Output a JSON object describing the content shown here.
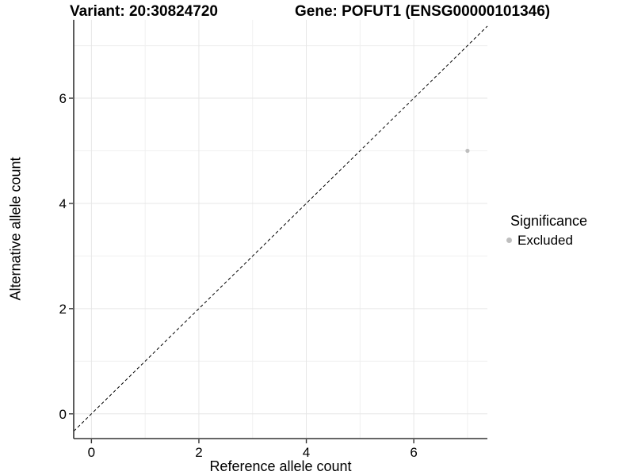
{
  "chart_data": {
    "type": "scatter",
    "title_left": "Variant: 20:30824720",
    "title_right": "Gene: POFUT1 (ENSG00000101346)",
    "xlabel": "Reference allele count",
    "ylabel": "Alternative allele count",
    "xlim": [
      -0.33,
      7.37
    ],
    "ylim": [
      -0.47,
      7.49
    ],
    "x_ticks": [
      0,
      2,
      4,
      6
    ],
    "y_ticks": [
      0,
      2,
      4,
      6
    ],
    "x_minor_breaks": [
      1,
      3,
      5,
      7
    ],
    "y_minor_breaks": [
      1,
      3,
      5,
      7
    ],
    "grid": true,
    "identity_line": {
      "equation": "y = x",
      "style": "dashed",
      "color": "#000000"
    },
    "series": [
      {
        "name": "Excluded",
        "color": "#bebebe",
        "points": [
          {
            "x": 7,
            "y": 5
          }
        ]
      }
    ],
    "legend": {
      "title": "Significance",
      "position": "right",
      "items": [
        {
          "label": "Excluded",
          "color": "#bebebe"
        }
      ]
    },
    "colors": {
      "background": "#ffffff",
      "grid_major": "#e6e6e6",
      "grid_minor": "#f0f0f0",
      "axis": "#333333",
      "tick_text": "#000000",
      "point": "#bebebe"
    }
  }
}
